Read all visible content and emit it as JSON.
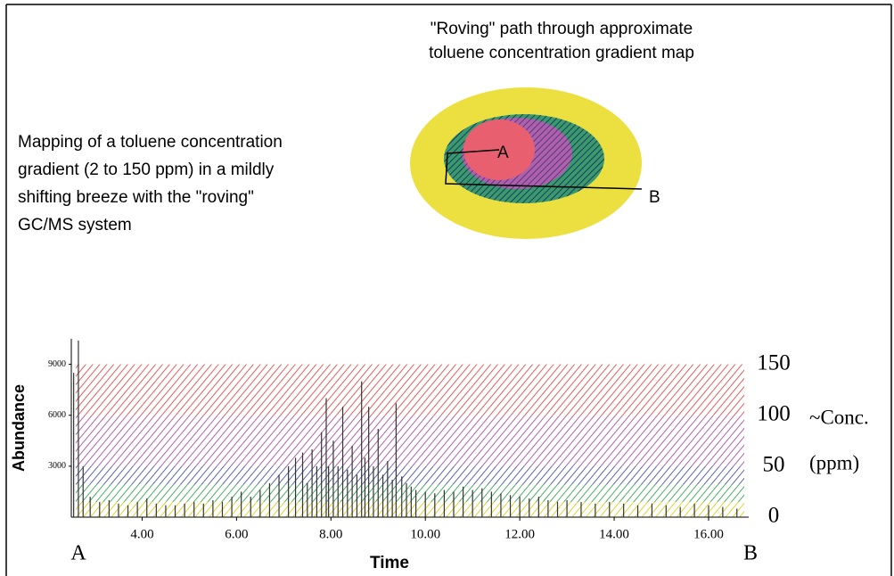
{
  "chart_data": {
    "type": "bar",
    "map_title": [
      "\"Roving\" path through approximate",
      "toluene concentration gradient map"
    ],
    "map_point_labels": [
      "A",
      "B"
    ],
    "description": [
      "Mapping of a toluene concentration",
      "gradient (2 to 150 ppm) in a mildly",
      "shifting breeze with the \"roving\"",
      "GC/MS system"
    ],
    "x_label": "Time",
    "y_label": "Abundance",
    "y2_label": [
      "~Conc.",
      "(ppm)"
    ],
    "x_endpoint_labels": [
      "A",
      "B"
    ],
    "x": [
      2.55,
      2.65,
      2.75,
      2.9,
      3.1,
      3.3,
      3.5,
      3.7,
      3.9,
      4.1,
      4.3,
      4.5,
      4.7,
      4.9,
      5.1,
      5.3,
      5.5,
      5.7,
      5.9,
      6.1,
      6.3,
      6.5,
      6.7,
      6.9,
      7.1,
      7.25,
      7.4,
      7.5,
      7.6,
      7.7,
      7.8,
      7.9,
      7.95,
      8.05,
      8.15,
      8.25,
      8.35,
      8.45,
      8.55,
      8.65,
      8.72,
      8.8,
      8.9,
      9.0,
      9.1,
      9.2,
      9.3,
      9.38,
      9.5,
      9.6,
      9.7,
      9.8,
      10.0,
      10.2,
      10.4,
      10.6,
      10.8,
      11.0,
      11.2,
      11.4,
      11.6,
      11.8,
      12.0,
      12.2,
      12.4,
      12.6,
      12.8,
      13.0,
      13.3,
      13.6,
      13.9,
      14.2,
      14.5,
      14.8,
      15.1,
      15.4,
      15.7,
      16.0,
      16.3,
      16.6
    ],
    "values": [
      8500,
      10400,
      3000,
      1200,
      900,
      1000,
      800,
      700,
      900,
      1100,
      800,
      700,
      700,
      800,
      900,
      800,
      1000,
      900,
      1200,
      1500,
      1200,
      1600,
      2000,
      2500,
      3000,
      3500,
      3800,
      2000,
      4000,
      3000,
      5000,
      7000,
      3000,
      4500,
      3000,
      6500,
      2800,
      4200,
      2500,
      8000,
      3500,
      6500,
      3000,
      5200,
      2500,
      3300,
      2200,
      6700,
      2400,
      2000,
      1800,
      1600,
      1500,
      1400,
      1600,
      1500,
      1800,
      1600,
      1700,
      1500,
      1400,
      1300,
      1200,
      1100,
      1200,
      1000,
      900,
      1000,
      900,
      800,
      900,
      800,
      700,
      800,
      700,
      600,
      800,
      700,
      600,
      500
    ],
    "color": "#333333",
    "xlim": [
      2.5,
      16.85
    ],
    "xticks": [
      {
        "value": 4,
        "label": "4.00"
      },
      {
        "value": 6,
        "label": "6.00"
      },
      {
        "value": 8,
        "label": "8.00"
      },
      {
        "value": 10,
        "label": "10.00"
      },
      {
        "value": 12,
        "label": "12.00"
      },
      {
        "value": 14,
        "label": "14.00"
      },
      {
        "value": 16,
        "label": "16.00"
      }
    ],
    "ylim": [
      0,
      10500
    ],
    "yticks": [
      3000,
      6000,
      9000
    ],
    "y2lim": [
      0,
      175
    ],
    "y2ticks": [
      0,
      50,
      100,
      150
    ],
    "bands": [
      {
        "from": 0,
        "to": 15,
        "color": "#d8c800"
      },
      {
        "from": 15,
        "to": 32,
        "color": "#1f9a3c"
      },
      {
        "from": 32,
        "to": 50,
        "color": "#2f3f9a"
      },
      {
        "from": 50,
        "to": 100,
        "color": "#9c3c96"
      },
      {
        "from": 100,
        "to": 150,
        "color": "#e03434"
      }
    ]
  }
}
